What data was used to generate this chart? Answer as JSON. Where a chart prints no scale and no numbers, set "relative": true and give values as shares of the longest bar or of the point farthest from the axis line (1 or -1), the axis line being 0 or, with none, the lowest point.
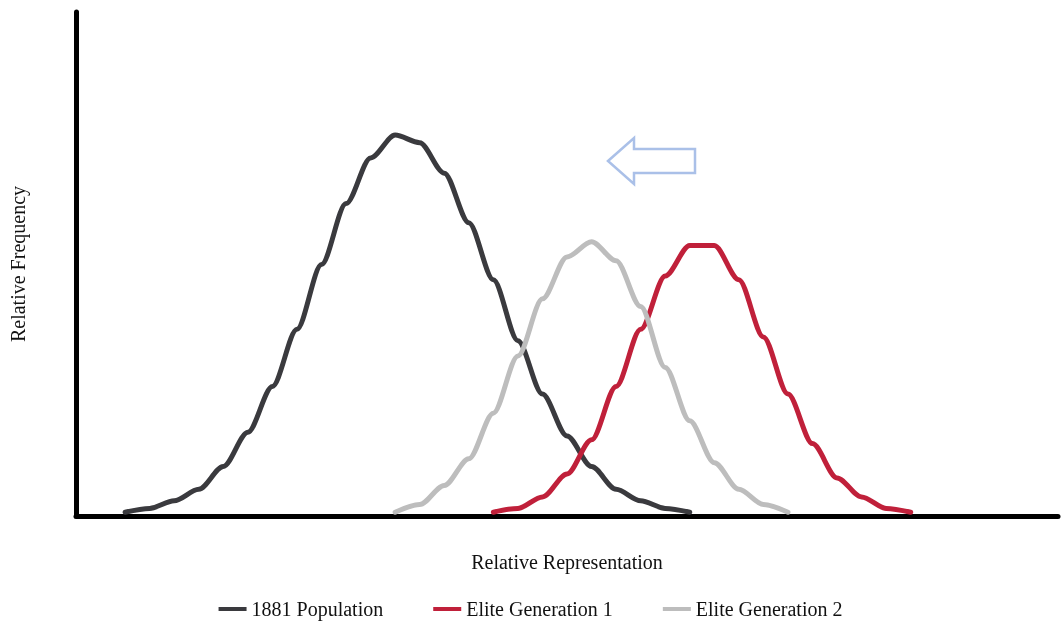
{
  "chart_data": {
    "type": "line",
    "relative": true,
    "xlabel": "Relative Representation",
    "ylabel": "Relative Frequency",
    "categories": [
      null,
      null,
      null,
      null,
      null,
      null,
      null,
      null,
      null,
      null,
      null,
      null,
      null,
      null,
      null,
      null,
      null,
      null,
      null,
      null,
      null,
      null,
      null,
      null,
      null,
      null,
      null,
      null,
      null,
      null,
      null,
      null,
      null,
      null,
      null,
      null,
      null,
      null,
      null,
      null,
      null
    ],
    "series": [
      {
        "name": "1881 Population",
        "color": "#3a3a3e",
        "values": [
          null,
          null,
          0.01,
          0.02,
          0.04,
          0.07,
          0.13,
          0.22,
          0.34,
          0.49,
          0.66,
          0.82,
          0.94,
          1.0,
          0.98,
          0.9,
          0.77,
          0.62,
          0.46,
          0.32,
          0.21,
          0.13,
          0.07,
          0.04,
          0.02,
          0.01,
          null,
          null,
          null,
          null,
          null,
          null,
          null,
          null,
          null,
          null,
          null,
          null,
          null,
          null,
          null
        ]
      },
      {
        "name": "Elite Generation 1",
        "color": "#c0203a",
        "values": [
          null,
          null,
          null,
          null,
          null,
          null,
          null,
          null,
          null,
          null,
          null,
          null,
          null,
          null,
          null,
          null,
          null,
          0.01,
          0.02,
          0.05,
          0.11,
          0.2,
          0.34,
          0.49,
          0.63,
          0.71,
          0.71,
          0.62,
          0.47,
          0.32,
          0.19,
          0.1,
          0.05,
          0.02,
          0.01,
          null,
          null,
          null,
          null,
          null,
          null
        ]
      },
      {
        "name": "Elite Generation 2",
        "color": "#bdbdbd",
        "values": [
          null,
          null,
          null,
          null,
          null,
          null,
          null,
          null,
          null,
          null,
          null,
          null,
          null,
          0.01,
          0.03,
          0.08,
          0.15,
          0.27,
          0.42,
          0.57,
          0.68,
          0.72,
          0.67,
          0.55,
          0.39,
          0.25,
          0.14,
          0.07,
          0.03,
          0.01,
          null,
          null,
          null,
          null,
          null,
          null,
          null,
          null,
          null,
          null,
          null
        ]
      }
    ],
    "grid": false,
    "legend": "bottom",
    "marker": "none",
    "line_style": "solid"
  }
}
